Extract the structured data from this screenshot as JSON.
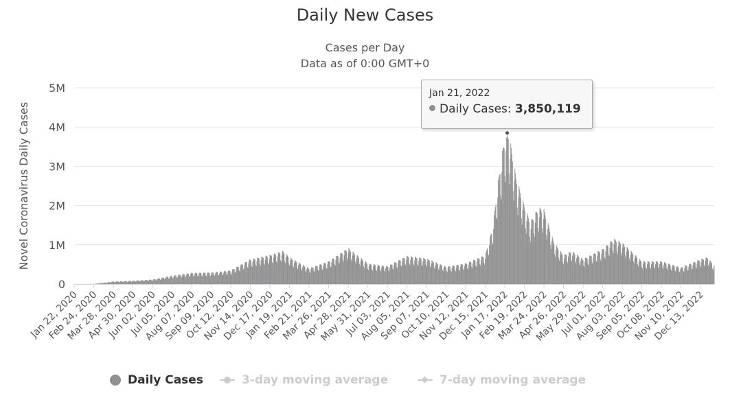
{
  "chart_data": {
    "type": "bar",
    "title": "Daily New Cases",
    "subtitle": [
      "Cases per Day",
      "Data as of 0:00 GMT+0"
    ],
    "ylabel": "Novel Coronavirus Daily Cases",
    "xlabel": "",
    "ylim": [
      0,
      5000000
    ],
    "y_ticks": [
      {
        "value": 0,
        "label": "0"
      },
      {
        "value": 1000000,
        "label": "1M"
      },
      {
        "value": 2000000,
        "label": "2M"
      },
      {
        "value": 3000000,
        "label": "3M"
      },
      {
        "value": 4000000,
        "label": "4M"
      },
      {
        "value": 5000000,
        "label": "5M"
      }
    ],
    "x_range": [
      "2020-01-22",
      "2023-01-05"
    ],
    "x_tick_labels": [
      "Jan 22, 2020",
      "Feb 24, 2020",
      "Mar 28, 2020",
      "Apr 30, 2020",
      "Jun 02, 2020",
      "Jul 05, 2020",
      "Aug 07, 2020",
      "Sep 09, 2020",
      "Oct 12, 2020",
      "Nov 14, 2020",
      "Dec 17, 2020",
      "Jan 19, 2021",
      "Feb 21, 2021",
      "Mar 26, 2021",
      "Apr 28, 2021",
      "May 31, 2021",
      "Jul 03, 2021",
      "Aug 05, 2021",
      "Sep 07, 2021",
      "Oct 10, 2021",
      "Nov 12, 2021",
      "Dec 15, 2021",
      "Jan 17, 2022",
      "Feb 19, 2022",
      "Mar 24, 2022",
      "Apr 26, 2022",
      "May 29, 2022",
      "Jul 01, 2022",
      "Aug 03, 2022",
      "Sep 05, 2022",
      "Oct 08, 2022",
      "Nov 10, 2022",
      "Dec 13, 2022"
    ],
    "series": [
      {
        "name": "Daily Cases",
        "color": "#8f8f8f",
        "interpolation": "daily",
        "keypoints": [
          [
            "2020-01-22",
            600
          ],
          [
            "2020-02-24",
            2500
          ],
          [
            "2020-03-28",
            60000
          ],
          [
            "2020-04-30",
            80000
          ],
          [
            "2020-06-02",
            110000
          ],
          [
            "2020-07-05",
            200000
          ],
          [
            "2020-08-07",
            270000
          ],
          [
            "2020-09-09",
            280000
          ],
          [
            "2020-10-12",
            330000
          ],
          [
            "2020-11-14",
            600000
          ],
          [
            "2020-12-17",
            700000
          ],
          [
            "2021-01-08",
            800000
          ],
          [
            "2021-01-19",
            650000
          ],
          [
            "2021-02-21",
            380000
          ],
          [
            "2021-03-26",
            550000
          ],
          [
            "2021-04-28",
            870000
          ],
          [
            "2021-05-31",
            500000
          ],
          [
            "2021-07-03",
            430000
          ],
          [
            "2021-08-05",
            680000
          ],
          [
            "2021-09-07",
            620000
          ],
          [
            "2021-10-10",
            420000
          ],
          [
            "2021-11-12",
            500000
          ],
          [
            "2021-12-15",
            700000
          ],
          [
            "2021-12-28",
            1400000
          ],
          [
            "2022-01-04",
            2300000
          ],
          [
            "2022-01-14",
            3300000
          ],
          [
            "2022-01-21",
            3850119
          ],
          [
            "2022-01-28",
            3300000
          ],
          [
            "2022-02-05",
            2600000
          ],
          [
            "2022-02-19",
            1900000
          ],
          [
            "2022-03-01",
            1500000
          ],
          [
            "2022-03-15",
            1850000
          ],
          [
            "2022-03-24",
            1800000
          ],
          [
            "2022-04-10",
            1000000
          ],
          [
            "2022-04-26",
            700000
          ],
          [
            "2022-05-10",
            800000
          ],
          [
            "2022-05-29",
            600000
          ],
          [
            "2022-07-01",
            850000
          ],
          [
            "2022-07-20",
            1100000
          ],
          [
            "2022-08-03",
            1000000
          ],
          [
            "2022-09-05",
            550000
          ],
          [
            "2022-10-08",
            550000
          ],
          [
            "2022-11-10",
            400000
          ],
          [
            "2022-12-13",
            600000
          ],
          [
            "2022-12-25",
            650000
          ],
          [
            "2023-01-05",
            450000
          ]
        ]
      },
      {
        "name": "3-day moving average",
        "color": "#cccccc",
        "hidden": true
      },
      {
        "name": "7-day moving average",
        "color": "#cccccc",
        "hidden": true
      }
    ],
    "tooltip": {
      "date": "Jan 21, 2022",
      "series": "Daily Cases",
      "value": 3850119,
      "value_label": "3,850,119"
    }
  },
  "ui": {
    "title": "Daily New Cases",
    "subtitle1": "Cases per Day",
    "subtitle2": "Data as of 0:00 GMT+0",
    "tooltip_date": "Jan 21, 2022",
    "tooltip_series_label": "Daily Cases:",
    "tooltip_value": "3,850,119",
    "legend": {
      "daily": "Daily Cases",
      "avg3": "3-day moving average",
      "avg7": "7-day moving average"
    }
  },
  "colors": {
    "bars": "#8f8f8f",
    "grid": "#e6e6e6",
    "axis_line": "#ccd6eb",
    "disabled_legend": "#cccccc"
  }
}
